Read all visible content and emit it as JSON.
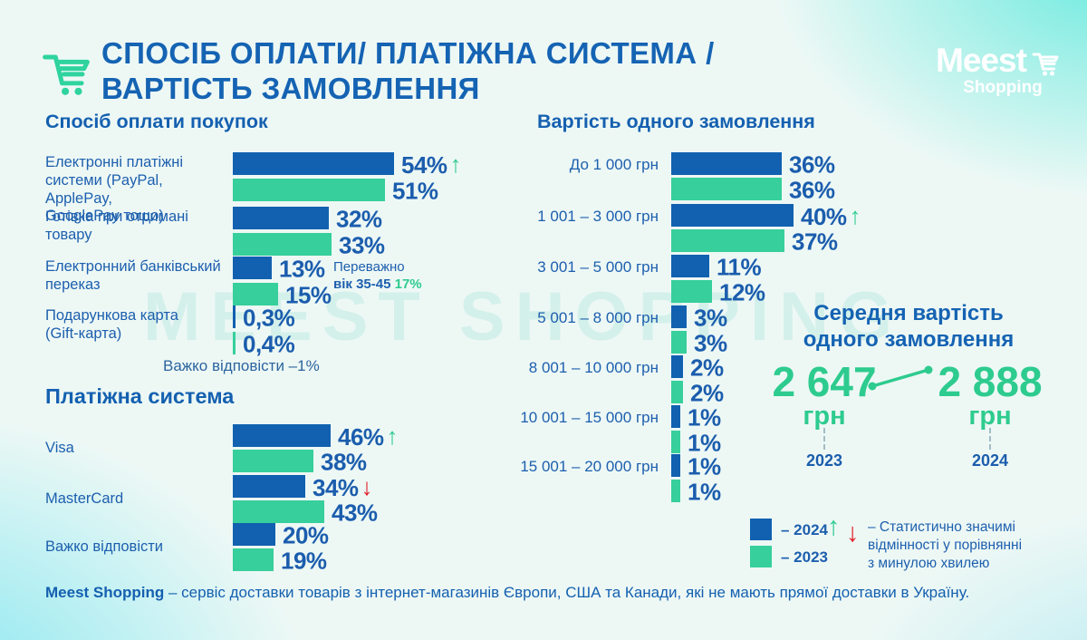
{
  "header": {
    "title_line1": "СПОСІБ ОПЛАТИ/ ПЛАТІЖНА СИСТЕМА /",
    "title_line2": "ВАРТІСТЬ ЗАМОВЛЕННЯ",
    "logo_name": "Meest",
    "logo_sub": "Shopping"
  },
  "watermark": "MEEST SHOPPING",
  "colors": {
    "blue": "#1161b0",
    "green": "#37cf9b",
    "text_blue": "#1b5dad",
    "title_blue": "#1563b3",
    "up_arrow": "#2ecb8f",
    "down_arrow": "#e11d26"
  },
  "chart_data": [
    {
      "id": "payment-method",
      "type": "bar",
      "orientation": "horizontal",
      "title": "Спосіб оплати покупок",
      "unit": "%",
      "series_names": [
        "2024",
        "2023"
      ],
      "rows": [
        {
          "label_lines": [
            "Електронні платіжні",
            "системи (PayPal, ApplePay,",
            "GooglePay тощо)"
          ],
          "values": {
            "2024": 54,
            "2023": 51
          },
          "display": {
            "2024": "54%",
            "2023": "51%"
          },
          "trend": "up"
        },
        {
          "label_lines": [
            "Готівка при отримані",
            "товару"
          ],
          "values": {
            "2024": 32,
            "2023": 33
          },
          "display": {
            "2024": "32%",
            "2023": "33%"
          }
        },
        {
          "label_lines": [
            "Електронний банківський",
            "переказ"
          ],
          "values": {
            "2024": 13,
            "2023": 15
          },
          "display": {
            "2024": "13%",
            "2023": "15%"
          }
        },
        {
          "label_lines": [
            "Подарункова карта",
            "(Gift-карта)"
          ],
          "values": {
            "2024": 0.3,
            "2023": 0.4
          },
          "display": {
            "2024": "0,3%",
            "2023": "0,4%"
          }
        }
      ],
      "annotation": {
        "line1": "Переважно",
        "line2_bold": "вік 35-45",
        "line2_value": "17%"
      },
      "footnote": "Важко відповісти –1%"
    },
    {
      "id": "payment-system",
      "type": "bar",
      "orientation": "horizontal",
      "title": "Платіжна система",
      "unit": "%",
      "series_names": [
        "2024",
        "2023"
      ],
      "rows": [
        {
          "label_lines": [
            "Visa"
          ],
          "values": {
            "2024": 46,
            "2023": 38
          },
          "display": {
            "2024": "46%",
            "2023": "38%"
          },
          "trend": "up"
        },
        {
          "label_lines": [
            "MasterCard"
          ],
          "values": {
            "2024": 34,
            "2023": 43
          },
          "display": {
            "2024": "34%",
            "2023": "43%"
          },
          "trend": "down"
        },
        {
          "label_lines": [
            "Важко відповісти"
          ],
          "values": {
            "2024": 20,
            "2023": 19
          },
          "display": {
            "2024": "20%",
            "2023": "19%"
          }
        }
      ]
    },
    {
      "id": "order-value",
      "type": "bar",
      "orientation": "horizontal",
      "title": "Вартість одного замовлення",
      "unit": "%",
      "series_names": [
        "2024",
        "2023"
      ],
      "rows": [
        {
          "label_lines": [
            "До 1 000 грн"
          ],
          "values": {
            "2024": 36,
            "2023": 36
          },
          "display": {
            "2024": "36%",
            "2023": "36%"
          }
        },
        {
          "label_lines": [
            "1 001 – 3 000 грн"
          ],
          "values": {
            "2024": 40,
            "2023": 37
          },
          "display": {
            "2024": "40%",
            "2023": "37%"
          },
          "trend": "up"
        },
        {
          "label_lines": [
            "3 001 – 5 000 грн"
          ],
          "values": {
            "2024": 11,
            "2023": 12
          },
          "display": {
            "2024": "11%",
            "2023": "12%"
          }
        },
        {
          "label_lines": [
            "5 001 – 8 000 грн"
          ],
          "values": {
            "2024": 3,
            "2023": 3
          },
          "display": {
            "2024": "3%",
            "2023": "3%"
          }
        },
        {
          "label_lines": [
            "8 001 – 10 000 грн"
          ],
          "values": {
            "2024": 2,
            "2023": 2
          },
          "display": {
            "2024": "2%",
            "2023": "2%"
          }
        },
        {
          "label_lines": [
            "10 001 – 15 000 грн"
          ],
          "values": {
            "2024": 1,
            "2023": 1
          },
          "display": {
            "2024": "1%",
            "2023": "1%"
          }
        },
        {
          "label_lines": [
            "15 001 – 20 000 грн"
          ],
          "values": {
            "2024": 1,
            "2023": 1
          },
          "display": {
            "2024": "1%",
            "2023": "1%"
          }
        }
      ]
    }
  ],
  "average": {
    "title_line1": "Середня вартість",
    "title_line2": "одного замовлення",
    "from": {
      "amount": "2 647",
      "unit": "грн",
      "year": "2023"
    },
    "to": {
      "amount": "2 888",
      "unit": "грн",
      "year": "2024"
    }
  },
  "legend": {
    "items": [
      {
        "swatch": "blue",
        "label": "– 2024"
      },
      {
        "swatch": "green",
        "label": "– 2023"
      }
    ],
    "significance": {
      "line1": "– Статистично значимі",
      "line2": "відмінності у порівнянні",
      "line3": "з минулою хвилею"
    }
  },
  "footer": {
    "bold": "Meest Shopping",
    "text": " – сервіс доставки товарів з інтернет-магазинів Європи, США та Канади, які не мають прямої доставки в Україну."
  }
}
